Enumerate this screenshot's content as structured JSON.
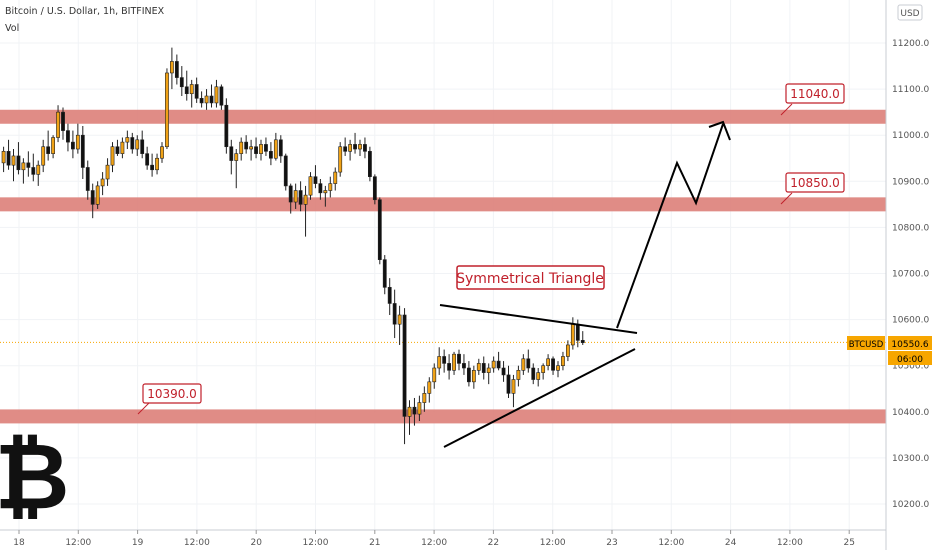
{
  "header": {
    "symbol_title": "Bitcoin / U.S. Dollar, 1h, BITFINEX",
    "indicator": "Vol"
  },
  "price_axis": {
    "currency_label": "USD",
    "ticks": [
      "11200.0",
      "11100.0",
      "11000.0",
      "10900.0",
      "10800.0",
      "10700.0",
      "10600.0",
      "10500.0",
      "10400.0",
      "10300.0",
      "10200.0"
    ],
    "current_symbol": "BTCUSD",
    "current_price": "10550.6",
    "countdown": "06:00"
  },
  "time_axis": {
    "ticks": [
      "18",
      "12:00",
      "19",
      "12:00",
      "20",
      "12:00",
      "21",
      "12:00",
      "22",
      "12:00",
      "23",
      "12:00",
      "24",
      "12:00",
      "25"
    ]
  },
  "colors": {
    "up": "#f0a216",
    "down": "#111111",
    "zone": "#d9736a",
    "zone_fill": "#dd8079",
    "label_red": "#c0202b",
    "current_price_bg": "#f7a600",
    "grid": "#f1f3f6"
  },
  "annotations": {
    "pattern_label": "Symmetrical Triangle",
    "resistance_top": "11040.0",
    "resistance_mid": "10850.0",
    "support": "10390.0"
  },
  "chart_data": {
    "type": "candlestick",
    "title": "Bitcoin / U.S. Dollar, 1h, BITFINEX",
    "ylim": [
      10160,
      11250
    ],
    "grid": true,
    "levels": [
      {
        "price": 11040.0,
        "label": "11040.0"
      },
      {
        "price": 10850.0,
        "label": "10850.0"
      },
      {
        "price": 10390.0,
        "label": "10390.0"
      }
    ],
    "candles": [
      [
        10940,
        10975,
        10920,
        10965
      ],
      [
        10965,
        10990,
        10925,
        10935
      ],
      [
        10935,
        10970,
        10900,
        10955
      ],
      [
        10955,
        10985,
        10915,
        10925
      ],
      [
        10925,
        10950,
        10895,
        10940
      ],
      [
        10940,
        10965,
        10910,
        10930
      ],
      [
        10930,
        10960,
        10900,
        10915
      ],
      [
        10915,
        10945,
        10890,
        10935
      ],
      [
        10935,
        10990,
        10920,
        10975
      ],
      [
        10975,
        11010,
        10945,
        10960
      ],
      [
        10960,
        11000,
        10950,
        10995
      ],
      [
        10995,
        11065,
        10985,
        11050
      ],
      [
        11050,
        11060,
        10990,
        11010
      ],
      [
        11010,
        11025,
        10965,
        10985
      ],
      [
        10985,
        11010,
        10950,
        10970
      ],
      [
        10970,
        11025,
        10960,
        11000
      ],
      [
        11000,
        11020,
        10905,
        10930
      ],
      [
        10930,
        10945,
        10860,
        10880
      ],
      [
        10880,
        10895,
        10820,
        10850
      ],
      [
        10850,
        10900,
        10840,
        10890
      ],
      [
        10890,
        10920,
        10870,
        10905
      ],
      [
        10905,
        10950,
        10890,
        10935
      ],
      [
        10935,
        10985,
        10920,
        10975
      ],
      [
        10975,
        10990,
        10955,
        10960
      ],
      [
        10960,
        10995,
        10950,
        10985
      ],
      [
        10985,
        11010,
        10970,
        10995
      ],
      [
        10995,
        11005,
        10960,
        10970
      ],
      [
        10970,
        11000,
        10955,
        10990
      ],
      [
        10990,
        11010,
        10950,
        10960
      ],
      [
        10960,
        10975,
        10925,
        10935
      ],
      [
        10935,
        10960,
        10910,
        10925
      ],
      [
        10925,
        10960,
        10915,
        10950
      ],
      [
        10950,
        10985,
        10940,
        10975
      ],
      [
        10975,
        11145,
        10970,
        11135
      ],
      [
        11135,
        11190,
        11100,
        11160
      ],
      [
        11160,
        11175,
        11110,
        11125
      ],
      [
        11125,
        11150,
        11085,
        11105
      ],
      [
        11105,
        11140,
        11075,
        11090
      ],
      [
        11090,
        11120,
        11060,
        11110
      ],
      [
        11110,
        11125,
        11070,
        11080
      ],
      [
        11080,
        11095,
        11060,
        11070
      ],
      [
        11070,
        11100,
        11055,
        11085
      ],
      [
        11085,
        11110,
        11060,
        11070
      ],
      [
        11070,
        11120,
        11060,
        11105
      ],
      [
        11105,
        11110,
        11055,
        11065
      ],
      [
        11065,
        11080,
        10960,
        10975
      ],
      [
        10975,
        10990,
        10915,
        10945
      ],
      [
        10945,
        10970,
        10885,
        10960
      ],
      [
        10960,
        10995,
        10945,
        10985
      ],
      [
        10985,
        11000,
        10960,
        10970
      ],
      [
        10970,
        10990,
        10945,
        10975
      ],
      [
        10975,
        10995,
        10950,
        10960
      ],
      [
        10960,
        10990,
        10945,
        10980
      ],
      [
        10980,
        10995,
        10955,
        10965
      ],
      [
        10965,
        10985,
        10935,
        10950
      ],
      [
        10950,
        11005,
        10945,
        10990
      ],
      [
        10990,
        11000,
        10940,
        10955
      ],
      [
        10955,
        10960,
        10880,
        10890
      ],
      [
        10890,
        10895,
        10830,
        10855
      ],
      [
        10855,
        10895,
        10840,
        10880
      ],
      [
        10880,
        10900,
        10835,
        10850
      ],
      [
        10850,
        10890,
        10780,
        10870
      ],
      [
        10870,
        10920,
        10860,
        10910
      ],
      [
        10910,
        10935,
        10885,
        10895
      ],
      [
        10895,
        10905,
        10860,
        10875
      ],
      [
        10875,
        10890,
        10845,
        10880
      ],
      [
        10880,
        10910,
        10865,
        10895
      ],
      [
        10895,
        10930,
        10880,
        10920
      ],
      [
        10920,
        10985,
        10910,
        10975
      ],
      [
        10975,
        10995,
        10955,
        10965
      ],
      [
        10965,
        10990,
        10945,
        10980
      ],
      [
        10980,
        11005,
        10960,
        10970
      ],
      [
        10970,
        10990,
        10955,
        10980
      ],
      [
        10980,
        10995,
        10950,
        10965
      ],
      [
        10965,
        10975,
        10900,
        10910
      ],
      [
        10910,
        10915,
        10850,
        10860
      ],
      [
        10860,
        10865,
        10720,
        10730
      ],
      [
        10730,
        10740,
        10655,
        10670
      ],
      [
        10670,
        10690,
        10610,
        10635
      ],
      [
        10635,
        10665,
        10560,
        10590
      ],
      [
        10590,
        10630,
        10545,
        10610
      ],
      [
        10610,
        10625,
        10330,
        10390
      ],
      [
        10390,
        10425,
        10350,
        10410
      ],
      [
        10410,
        10430,
        10370,
        10395
      ],
      [
        10395,
        10435,
        10380,
        10420
      ],
      [
        10420,
        10455,
        10400,
        10440
      ],
      [
        10440,
        10475,
        10420,
        10465
      ],
      [
        10465,
        10505,
        10450,
        10495
      ],
      [
        10495,
        10540,
        10480,
        10520
      ],
      [
        10520,
        10535,
        10485,
        10505
      ],
      [
        10505,
        10525,
        10470,
        10490
      ],
      [
        10490,
        10530,
        10480,
        10525
      ],
      [
        10525,
        10535,
        10490,
        10505
      ],
      [
        10505,
        10525,
        10480,
        10495
      ],
      [
        10495,
        10510,
        10455,
        10465
      ],
      [
        10465,
        10500,
        10450,
        10490
      ],
      [
        10490,
        10515,
        10480,
        10505
      ],
      [
        10505,
        10520,
        10470,
        10485
      ],
      [
        10485,
        10505,
        10460,
        10495
      ],
      [
        10495,
        10520,
        10485,
        10510
      ],
      [
        10510,
        10530,
        10490,
        10495
      ],
      [
        10495,
        10510,
        10465,
        10480
      ],
      [
        10480,
        10500,
        10430,
        10440
      ],
      [
        10440,
        10480,
        10410,
        10470
      ],
      [
        10470,
        10500,
        10455,
        10490
      ],
      [
        10490,
        10525,
        10480,
        10515
      ],
      [
        10515,
        10535,
        10485,
        10495
      ],
      [
        10495,
        10505,
        10460,
        10470
      ],
      [
        10470,
        10495,
        10455,
        10485
      ],
      [
        10485,
        10505,
        10470,
        10500
      ],
      [
        10500,
        10525,
        10490,
        10515
      ],
      [
        10515,
        10520,
        10480,
        10490
      ],
      [
        10490,
        10510,
        10475,
        10500
      ],
      [
        10500,
        10530,
        10490,
        10520
      ],
      [
        10520,
        10555,
        10510,
        10545
      ],
      [
        10545,
        10605,
        10535,
        10590
      ],
      [
        10590,
        10600,
        10540,
        10555
      ],
      [
        10555,
        10575,
        10545,
        10550
      ]
    ],
    "annotation_lines": {
      "triangle_upper": [
        [
          10630
        ],
        [
          10565
        ]
      ],
      "triangle_lower": [
        [
          10330
        ],
        [
          10540
        ]
      ],
      "projection": [
        10560,
        10930,
        10860,
        11030
      ]
    }
  }
}
